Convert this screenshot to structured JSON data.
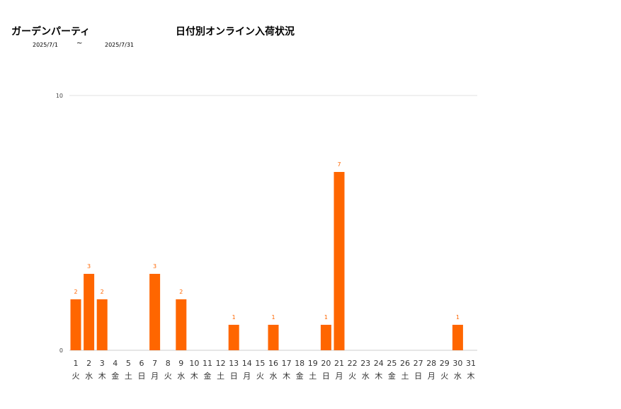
{
  "header": {
    "store_name": "ガーデンパーティ",
    "title": "日付別オンライン入荷状況",
    "date_from": "2025/7/1",
    "date_sep": "~",
    "date_to": "2025/7/31"
  },
  "chart_data": {
    "type": "bar",
    "title": "日付別オンライン入荷状況",
    "xlabel": "",
    "ylabel": "",
    "ylim": [
      0,
      10
    ],
    "yticks": [
      0,
      10
    ],
    "grid": true,
    "color": "#ff6600",
    "categories": [
      "1",
      "2",
      "3",
      "4",
      "5",
      "6",
      "7",
      "8",
      "9",
      "10",
      "11",
      "12",
      "13",
      "14",
      "15",
      "16",
      "17",
      "18",
      "19",
      "20",
      "21",
      "22",
      "23",
      "24",
      "25",
      "26",
      "27",
      "28",
      "29",
      "30",
      "31"
    ],
    "weekdays": [
      "火",
      "水",
      "木",
      "金",
      "土",
      "日",
      "月",
      "火",
      "水",
      "木",
      "金",
      "土",
      "日",
      "月",
      "火",
      "水",
      "木",
      "金",
      "土",
      "日",
      "月",
      "火",
      "水",
      "木",
      "金",
      "土",
      "日",
      "月",
      "火",
      "水",
      "木"
    ],
    "values": [
      2,
      3,
      2,
      0,
      0,
      0,
      3,
      0,
      2,
      0,
      0,
      0,
      1,
      0,
      0,
      1,
      0,
      0,
      0,
      1,
      7,
      0,
      0,
      0,
      0,
      0,
      0,
      0,
      0,
      1,
      0
    ]
  }
}
